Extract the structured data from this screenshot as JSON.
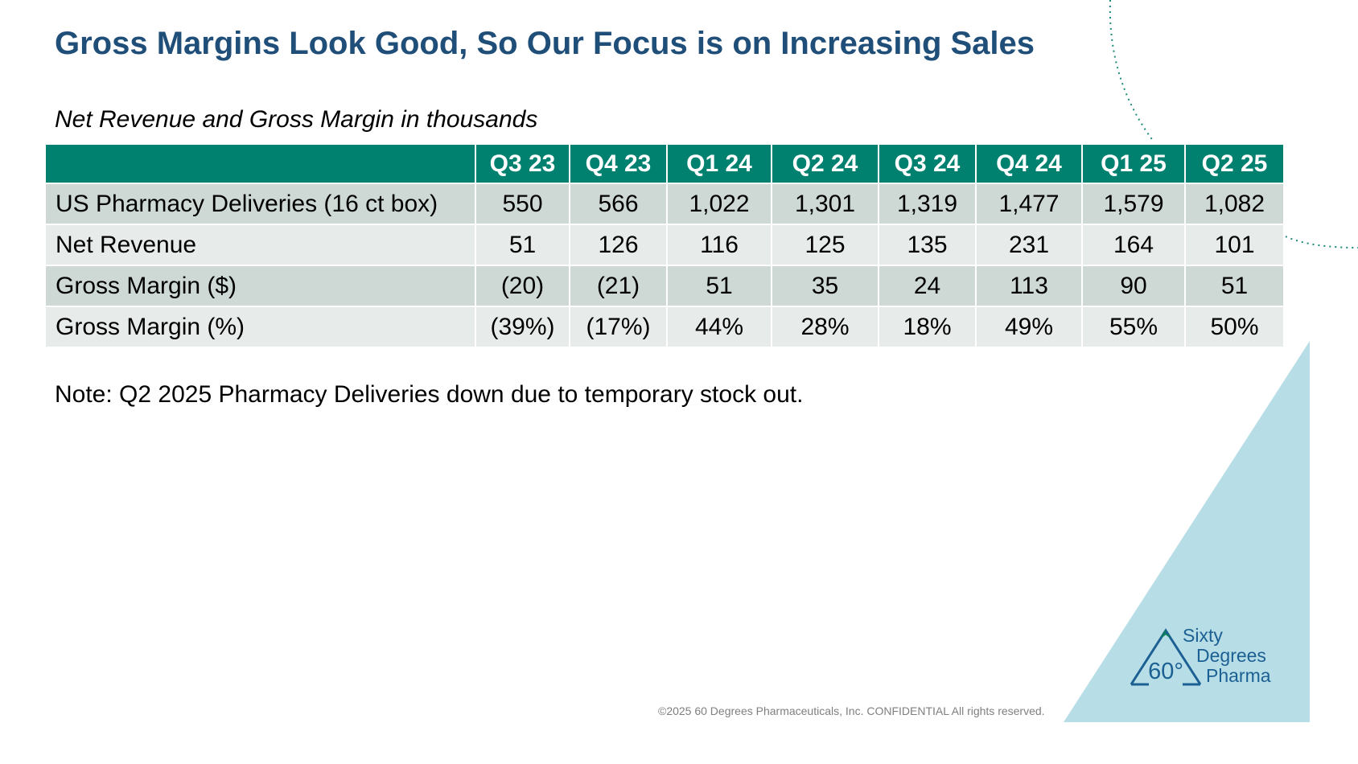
{
  "slide": {
    "title": "Gross Margins Look Good, So Our Focus is on Increasing Sales",
    "subtitle": "Net Revenue and Gross Margin in thousands",
    "note": "Note: Q2 2025 Pharmacy Deliveries down due to temporary stock out.",
    "footer": "©2025 60 Degrees Pharmaceuticals, Inc. CONFIDENTIAL All rights reserved."
  },
  "table": {
    "columns": [
      "Q3 23",
      "Q4 23",
      "Q1 24",
      "Q2 24",
      "Q3 24",
      "Q4 24",
      "Q1 25",
      "Q2 25"
    ],
    "rows": [
      {
        "label": "US Pharmacy Deliveries (16 ct box)",
        "values": [
          "550",
          "566",
          "1,022",
          "1,301",
          "1,319",
          "1,477",
          "1,579",
          "1,082"
        ]
      },
      {
        "label": "Net Revenue",
        "values": [
          "51",
          "126",
          "116",
          "125",
          "135",
          "231",
          "164",
          "101"
        ]
      },
      {
        "label": "Gross Margin ($)",
        "values": [
          "(20)",
          "(21)",
          "51",
          "35",
          "24",
          "113",
          "90",
          "51"
        ]
      },
      {
        "label": "Gross Margin (%)",
        "values": [
          "(39%)",
          "(17%)",
          "44%",
          "28%",
          "18%",
          "49%",
          "55%",
          "50%"
        ]
      }
    ]
  },
  "logo": {
    "line1": "Sixty",
    "line2": "Degrees",
    "line3": "Pharma",
    "badge": "60°"
  },
  "colors": {
    "title": "#1f4e79",
    "header_fill": "#00806f",
    "row_dark": "#ced9d6",
    "row_light": "#e7ecea",
    "triangle": "#b7dde6",
    "logo_blue": "#1b5f93",
    "logo_green": "#0d7c5f"
  }
}
